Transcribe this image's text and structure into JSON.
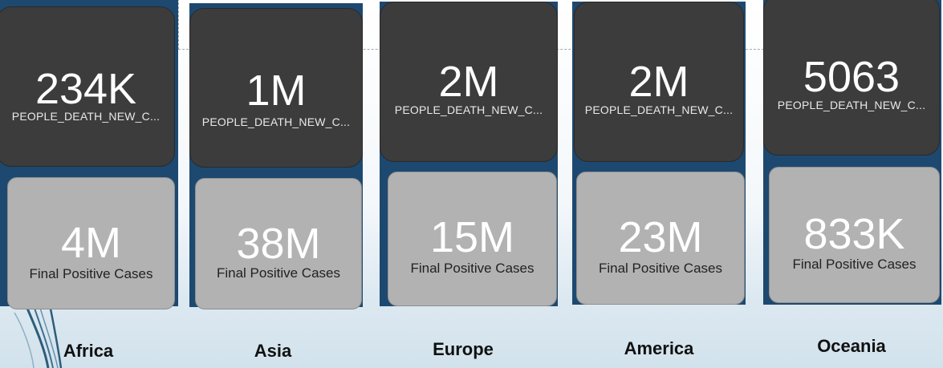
{
  "regions": [
    {
      "name": "Africa",
      "deaths_value": "234K",
      "deaths_label": "PEOPLE_DEATH_NEW_C...",
      "cases_value": "4M",
      "cases_label": "Final Positive Cases"
    },
    {
      "name": "Asia",
      "deaths_value": "1M",
      "deaths_label": "PEOPLE_DEATH_NEW_C...",
      "cases_value": "38M",
      "cases_label": "Final Positive Cases"
    },
    {
      "name": "Europe",
      "deaths_value": "2M",
      "deaths_label": "PEOPLE_DEATH_NEW_C...",
      "cases_value": "15M",
      "cases_label": "Final Positive Cases"
    },
    {
      "name": "America",
      "deaths_value": "2M",
      "deaths_label": "PEOPLE_DEATH_NEW_C...",
      "cases_value": "23M",
      "cases_label": "Final Positive Cases"
    },
    {
      "name": "Oceania",
      "deaths_value": "5063",
      "deaths_label": "PEOPLE_DEATH_NEW_C...",
      "cases_value": "833K",
      "cases_label": "Final Positive Cases"
    }
  ],
  "colors": {
    "panel_bg": "#1d4970",
    "dark_tile": "#3c3c3c",
    "light_tile": "#b2b2b2"
  }
}
